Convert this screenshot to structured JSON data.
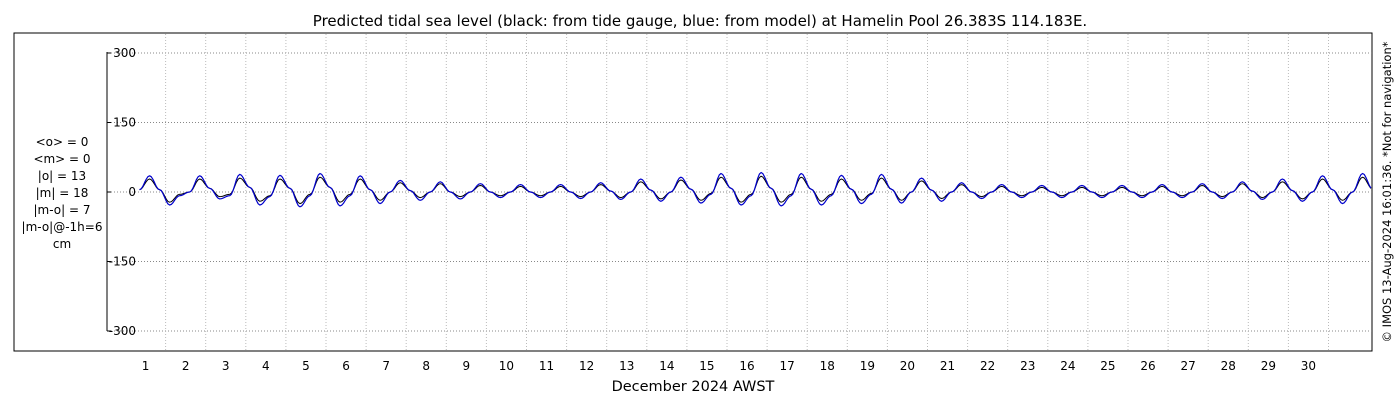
{
  "chart_data": {
    "type": "line",
    "title": "Predicted tidal sea level (black: from tide gauge, blue: from model) at Hamelin Pool 26.383S 114.183E.",
    "xlabel": "December 2024 AWST",
    "ylabel": "",
    "xlim": [
      0,
      31
    ],
    "ylim": [
      -320,
      320
    ],
    "x_ticks": [
      "1",
      "2",
      "3",
      "4",
      "5",
      "6",
      "7",
      "8",
      "9",
      "10",
      "11",
      "12",
      "13",
      "14",
      "15",
      "16",
      "17",
      "18",
      "19",
      "20",
      "21",
      "22",
      "23",
      "24",
      "25",
      "26",
      "27",
      "28",
      "29",
      "30"
    ],
    "y_ticks": [
      -300,
      -150,
      0,
      150,
      300
    ],
    "y_tick_labels": [
      "-300",
      "-150",
      "0",
      "150",
      "300"
    ],
    "grid": true,
    "stats": [
      "<o> = 0",
      "<m> = 0",
      "|o| = 13",
      "|m| = 18",
      "|m-o| = 7",
      "|m-o|@-1h=6",
      "cm"
    ],
    "credit": "© IMOS 13-Aug-2024 16:01:36. *Not for navigation*",
    "colors": {
      "gauge": "#000000",
      "model": "#0000cc",
      "grid": "#888888",
      "vgrid": "#bbbbbb"
    },
    "series": [
      {
        "name": "tide gauge",
        "color": "#000000",
        "x": [
          0.0,
          0.25,
          0.5,
          0.75,
          1.0,
          1.25,
          1.5,
          1.75,
          2.0,
          2.25,
          2.5,
          2.75,
          3.0,
          3.25,
          3.5,
          3.75,
          4.0,
          4.25,
          4.5,
          4.75,
          5.0,
          5.25,
          5.5,
          5.75,
          6.0,
          6.25,
          6.5,
          6.75,
          7.0,
          7.25,
          7.5,
          7.75,
          8.0,
          8.25,
          8.5,
          8.75,
          9.0,
          9.25,
          9.5,
          9.75,
          10.0,
          10.25,
          10.5,
          10.75,
          11.0,
          11.25,
          11.5,
          11.75,
          12.0,
          12.25,
          12.5,
          12.75,
          13.0,
          13.25,
          13.5,
          13.75,
          14.0,
          14.25,
          14.5,
          14.75,
          15.0,
          15.25,
          15.5,
          15.75,
          16.0,
          16.25,
          16.5,
          16.75,
          17.0,
          17.25,
          17.5,
          17.75,
          18.0,
          18.25,
          18.5,
          18.75,
          19.0,
          19.25,
          19.5,
          19.75,
          20.0,
          20.25,
          20.5,
          20.75,
          21.0,
          21.25,
          21.5,
          21.75,
          22.0,
          22.25,
          22.5,
          22.75,
          23.0,
          23.25,
          23.5,
          23.75,
          24.0,
          24.25,
          24.5,
          24.75,
          25.0,
          25.25,
          25.5,
          25.75,
          26.0,
          26.25,
          26.5,
          26.75,
          27.0,
          27.25,
          27.5,
          27.75,
          28.0,
          28.25,
          28.5,
          28.75,
          29.0,
          29.25,
          29.5,
          29.75,
          30.0,
          30.25,
          30.5,
          30.75,
          31.0
        ],
        "y": [
          5,
          28,
          5,
          -22,
          -5,
          0,
          28,
          8,
          -10,
          -5,
          30,
          10,
          -20,
          -8,
          28,
          8,
          -25,
          -5,
          32,
          10,
          -22,
          -5,
          28,
          5,
          -18,
          0,
          20,
          3,
          -12,
          0,
          18,
          0,
          -10,
          0,
          14,
          0,
          -8,
          0,
          12,
          0,
          -8,
          0,
          12,
          0,
          -10,
          0,
          16,
          2,
          -12,
          0,
          22,
          4,
          -15,
          0,
          26,
          6,
          -18,
          -3,
          32,
          8,
          -22,
          -5,
          34,
          8,
          -22,
          -5,
          32,
          6,
          -20,
          -5,
          28,
          6,
          -18,
          -3,
          30,
          6,
          -18,
          0,
          24,
          4,
          -14,
          0,
          16,
          0,
          -10,
          0,
          12,
          0,
          -8,
          0,
          10,
          0,
          -8,
          0,
          10,
          0,
          -8,
          0,
          10,
          0,
          -8,
          0,
          12,
          0,
          -8,
          0,
          14,
          0,
          -10,
          0,
          18,
          2,
          -12,
          0,
          22,
          3,
          -15,
          0,
          28,
          5,
          -18,
          0,
          32,
          6,
          -20
        ]
      },
      {
        "name": "model",
        "color": "#0000cc",
        "x": [
          0.0,
          0.25,
          0.5,
          0.75,
          1.0,
          1.25,
          1.5,
          1.75,
          2.0,
          2.25,
          2.5,
          2.75,
          3.0,
          3.25,
          3.5,
          3.75,
          4.0,
          4.25,
          4.5,
          4.75,
          5.0,
          5.25,
          5.5,
          5.75,
          6.0,
          6.25,
          6.5,
          6.75,
          7.0,
          7.25,
          7.5,
          7.75,
          8.0,
          8.25,
          8.5,
          8.75,
          9.0,
          9.25,
          9.5,
          9.75,
          10.0,
          10.25,
          10.5,
          10.75,
          11.0,
          11.25,
          11.5,
          11.75,
          12.0,
          12.25,
          12.5,
          12.75,
          13.0,
          13.25,
          13.5,
          13.75,
          14.0,
          14.25,
          14.5,
          14.75,
          15.0,
          15.25,
          15.5,
          15.75,
          16.0,
          16.25,
          16.5,
          16.75,
          17.0,
          17.25,
          17.5,
          17.75,
          18.0,
          18.25,
          18.5,
          18.75,
          19.0,
          19.25,
          19.5,
          19.75,
          20.0,
          20.25,
          20.5,
          20.75,
          21.0,
          21.25,
          21.5,
          21.75,
          22.0,
          22.25,
          22.5,
          22.75,
          23.0,
          23.25,
          23.5,
          23.75,
          24.0,
          24.25,
          24.5,
          24.75,
          25.0,
          25.25,
          25.5,
          25.75,
          26.0,
          26.25,
          26.5,
          26.75,
          27.0,
          27.25,
          27.5,
          27.75,
          28.0,
          28.25,
          28.5,
          28.75,
          29.0,
          29.25,
          29.5,
          29.75,
          30.0,
          30.25,
          30.5,
          30.75,
          31.0
        ],
        "y": [
          5,
          35,
          5,
          -28,
          -8,
          0,
          35,
          8,
          -15,
          -8,
          38,
          10,
          -28,
          -10,
          36,
          8,
          -32,
          -8,
          40,
          10,
          -30,
          -8,
          35,
          5,
          -25,
          0,
          25,
          3,
          -18,
          0,
          22,
          0,
          -15,
          0,
          18,
          0,
          -12,
          0,
          16,
          0,
          -12,
          0,
          16,
          0,
          -14,
          0,
          20,
          2,
          -16,
          0,
          28,
          4,
          -20,
          0,
          32,
          6,
          -24,
          -5,
          40,
          8,
          -28,
          -8,
          42,
          8,
          -30,
          -8,
          40,
          6,
          -28,
          -8,
          36,
          6,
          -25,
          -5,
          38,
          6,
          -24,
          0,
          30,
          4,
          -20,
          0,
          20,
          0,
          -14,
          0,
          16,
          0,
          -12,
          0,
          14,
          0,
          -12,
          0,
          14,
          0,
          -12,
          0,
          14,
          0,
          -12,
          0,
          16,
          0,
          -12,
          0,
          18,
          0,
          -14,
          0,
          22,
          2,
          -16,
          0,
          28,
          3,
          -20,
          0,
          35,
          5,
          -25,
          0,
          40,
          6,
          -26
        ]
      }
    ]
  }
}
